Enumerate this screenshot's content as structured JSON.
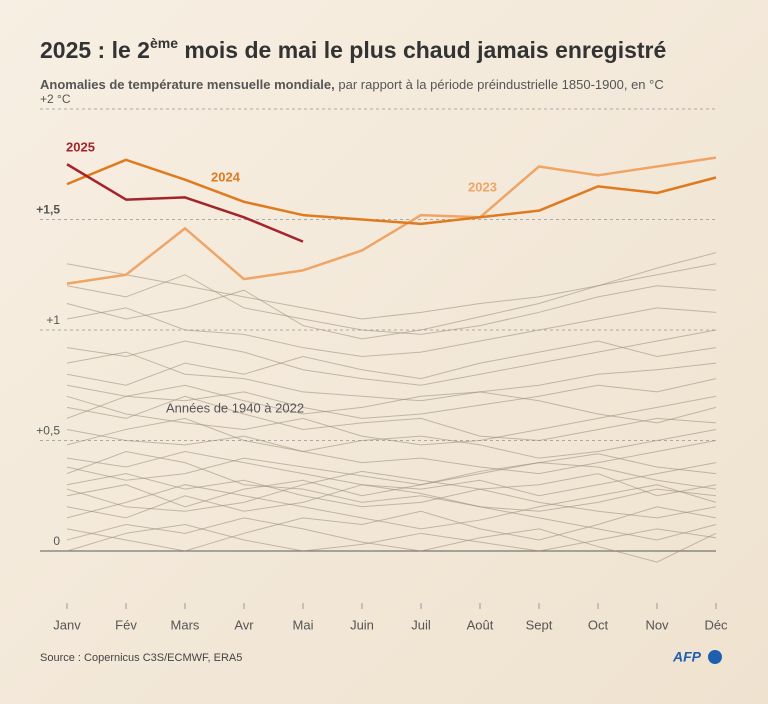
{
  "chart_data": {
    "type": "line",
    "title": {
      "before": "2025 : le 2",
      "sup": "ème",
      "after": " mois de mai le plus chaud jamais enregistré"
    },
    "subtitle": {
      "bold": "Anomalies de température mensuelle mondiale,",
      "regular": " par rapport à la période préindustrielle 1850-1900, en °C"
    },
    "categories": [
      "Janv",
      "Fév",
      "Mars",
      "Avr",
      "Mai",
      "Juin",
      "Juil",
      "Août",
      "Sept",
      "Oct",
      "Nov",
      "Déc"
    ],
    "ylim": [
      -0.2,
      2.05
    ],
    "yticks": [
      {
        "value": 0,
        "label": "0"
      },
      {
        "value": 0.5,
        "label": "+0,5"
      },
      {
        "value": 1,
        "label": "+1"
      },
      {
        "value": 1.5,
        "label": "+1,5"
      },
      {
        "value": 2,
        "label": "+2 °C"
      }
    ],
    "grid": true,
    "annotation": "Années de 1940 à 2022",
    "background_color": "#9a8b78",
    "background_series": [
      {
        "values": [
          0.05,
          0.12,
          0.08,
          0.15,
          0.1,
          0.04,
          0.0,
          0.06,
          0.1,
          0.02,
          -0.05,
          0.08
        ]
      },
      {
        "values": [
          0.2,
          0.15,
          0.25,
          0.18,
          0.22,
          0.3,
          0.26,
          0.2,
          0.15,
          0.1,
          0.05,
          0.12
        ]
      },
      {
        "values": [
          0.3,
          0.35,
          0.28,
          0.32,
          0.25,
          0.2,
          0.22,
          0.28,
          0.3,
          0.35,
          0.25,
          0.3
        ]
      },
      {
        "values": [
          0.1,
          0.05,
          0.0,
          0.08,
          0.15,
          0.12,
          0.18,
          0.1,
          0.05,
          0.12,
          0.2,
          0.15
        ]
      },
      {
        "values": [
          0.42,
          0.38,
          0.45,
          0.4,
          0.35,
          0.3,
          0.28,
          0.32,
          0.25,
          0.3,
          0.35,
          0.4
        ]
      },
      {
        "values": [
          0.25,
          0.3,
          0.2,
          0.28,
          0.32,
          0.25,
          0.3,
          0.35,
          0.4,
          0.38,
          0.32,
          0.28
        ]
      },
      {
        "values": [
          0.55,
          0.5,
          0.48,
          0.52,
          0.45,
          0.4,
          0.42,
          0.38,
          0.35,
          0.4,
          0.45,
          0.5
        ]
      },
      {
        "values": [
          0.35,
          0.45,
          0.4,
          0.3,
          0.28,
          0.22,
          0.25,
          0.2,
          0.18,
          0.22,
          0.28,
          0.25
        ]
      },
      {
        "values": [
          0.65,
          0.6,
          0.7,
          0.62,
          0.55,
          0.58,
          0.6,
          0.52,
          0.5,
          0.55,
          0.6,
          0.58
        ]
      },
      {
        "values": [
          0.15,
          0.22,
          0.3,
          0.25,
          0.2,
          0.15,
          0.1,
          0.14,
          0.2,
          0.25,
          0.3,
          0.22
        ]
      },
      {
        "values": [
          0.75,
          0.7,
          0.68,
          0.72,
          0.65,
          0.6,
          0.62,
          0.66,
          0.7,
          0.75,
          0.72,
          0.78
        ]
      },
      {
        "values": [
          0.48,
          0.55,
          0.6,
          0.5,
          0.45,
          0.5,
          0.52,
          0.48,
          0.42,
          0.45,
          0.5,
          0.55
        ]
      },
      {
        "values": [
          0.85,
          0.9,
          0.8,
          0.78,
          0.72,
          0.7,
          0.68,
          0.72,
          0.75,
          0.8,
          0.82,
          0.85
        ]
      },
      {
        "values": [
          0.92,
          0.88,
          0.95,
          0.9,
          0.82,
          0.78,
          0.75,
          0.8,
          0.85,
          0.9,
          0.95,
          1.0
        ]
      },
      {
        "values": [
          1.05,
          1.1,
          1.0,
          0.98,
          0.92,
          0.88,
          0.9,
          0.95,
          1.0,
          1.05,
          1.1,
          1.08
        ]
      },
      {
        "values": [
          1.2,
          1.15,
          1.25,
          1.1,
          1.05,
          1.0,
          0.98,
          1.02,
          1.08,
          1.15,
          1.2,
          1.18
        ]
      },
      {
        "values": [
          0.6,
          0.7,
          0.75,
          0.68,
          0.62,
          0.65,
          0.7,
          0.72,
          0.68,
          0.62,
          0.58,
          0.65
        ]
      },
      {
        "values": [
          1.3,
          1.25,
          1.2,
          1.15,
          1.1,
          1.05,
          1.08,
          1.12,
          1.15,
          1.2,
          1.25,
          1.3
        ]
      },
      {
        "values": [
          0.8,
          0.75,
          0.85,
          0.8,
          0.88,
          0.82,
          0.78,
          0.85,
          0.9,
          0.95,
          0.88,
          0.92
        ]
      },
      {
        "values": [
          0.38,
          0.32,
          0.35,
          0.42,
          0.38,
          0.34,
          0.3,
          0.36,
          0.4,
          0.44,
          0.38,
          0.35
        ]
      },
      {
        "values": [
          0.0,
          0.08,
          0.12,
          0.05,
          0.0,
          0.03,
          0.08,
          0.04,
          0.0,
          0.05,
          0.1,
          0.06
        ]
      },
      {
        "values": [
          1.12,
          1.05,
          1.1,
          1.18,
          1.02,
          0.96,
          1.0,
          1.06,
          1.12,
          1.2,
          1.28,
          1.35
        ]
      },
      {
        "values": [
          0.7,
          0.62,
          0.58,
          0.55,
          0.6,
          0.52,
          0.48,
          0.5,
          0.55,
          0.6,
          0.65,
          0.7
        ]
      },
      {
        "values": [
          0.28,
          0.2,
          0.18,
          0.22,
          0.3,
          0.36,
          0.32,
          0.28,
          0.22,
          0.18,
          0.15,
          0.2
        ]
      }
    ],
    "series": [
      {
        "name": "2023",
        "color": "#efa565",
        "values": [
          1.21,
          1.25,
          1.46,
          1.23,
          1.27,
          1.36,
          1.52,
          1.51,
          1.74,
          1.7,
          1.74,
          1.78
        ]
      },
      {
        "name": "2024",
        "color": "#e07a1f",
        "values": [
          1.66,
          1.77,
          1.68,
          1.58,
          1.52,
          1.5,
          1.48,
          1.51,
          1.54,
          1.65,
          1.62,
          1.69
        ]
      },
      {
        "name": "2025",
        "color": "#a3242b",
        "values": [
          1.75,
          1.59,
          1.6,
          1.51,
          1.4,
          null,
          null,
          null,
          null,
          null,
          null,
          null
        ]
      }
    ],
    "source": "Source : Copernicus C3S/ECMWF, ERA5",
    "logo": "AFP"
  }
}
